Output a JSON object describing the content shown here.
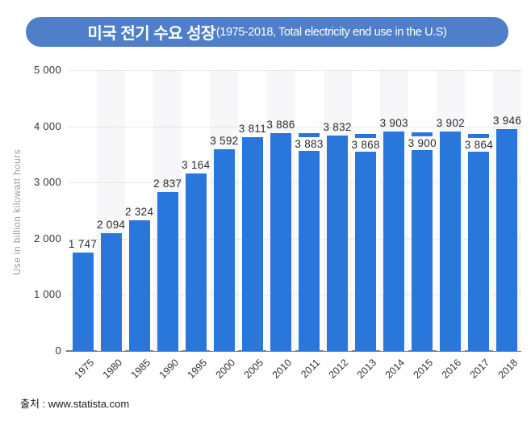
{
  "title": {
    "main": "미국 전기 수요 성장",
    "subtitle": "(1975-2018, Total electricity end use in the U.S)"
  },
  "source": "출처 : www.statista.com",
  "colors": {
    "bar": "#2a77db",
    "banner": "#4e7fc8",
    "stripe": "#f7f7f9",
    "gridline": "#d4d4d6",
    "axis_line": "#7d7d7d",
    "value_label": "#2b2b2b",
    "tick_label": "#333333",
    "y_axis_title": "#9a9a9a",
    "title_text": "#ffffff"
  },
  "chart_data": {
    "type": "bar",
    "title": "미국 전기 수요 성장 (1975-2018, Total electricity end use in the U.S)",
    "categories": [
      "1975",
      "1980",
      "1985",
      "1990",
      "1995",
      "2000",
      "2005",
      "2010",
      "2011",
      "2012",
      "2013",
      "2014",
      "2015",
      "2016",
      "2017",
      "2018"
    ],
    "values": [
      1747,
      2094,
      2324,
      2837,
      3164,
      3592,
      3811,
      3886,
      3883,
      3832,
      3868,
      3903,
      3900,
      3902,
      3864,
      3946
    ],
    "value_labels": [
      "1 747",
      "2 094",
      "2 324",
      "2 837",
      "3 164",
      "3 592",
      "3 811",
      "3 886",
      "3 883",
      "3 832",
      "3 868",
      "3 903",
      "3 900",
      "3 902",
      "3 864",
      "3 946"
    ],
    "xlabel": "",
    "ylabel": "Use in billion kilowatt hours",
    "ylim": [
      0,
      5000
    ],
    "yticks": [
      {
        "value": 0,
        "label": "0"
      },
      {
        "value": 1000,
        "label": "1 000"
      },
      {
        "value": 2000,
        "label": "2 000"
      },
      {
        "value": 3000,
        "label": "3 000"
      },
      {
        "value": 4000,
        "label": "4 000"
      },
      {
        "value": 5000,
        "label": "5 000"
      }
    ],
    "grid": "horizontal-dotted",
    "legend": "none",
    "striped_column_indices": [
      1,
      3,
      5,
      7,
      9,
      11,
      13,
      15
    ],
    "inset_value_label_indices": [
      8,
      10,
      12,
      14
    ]
  }
}
